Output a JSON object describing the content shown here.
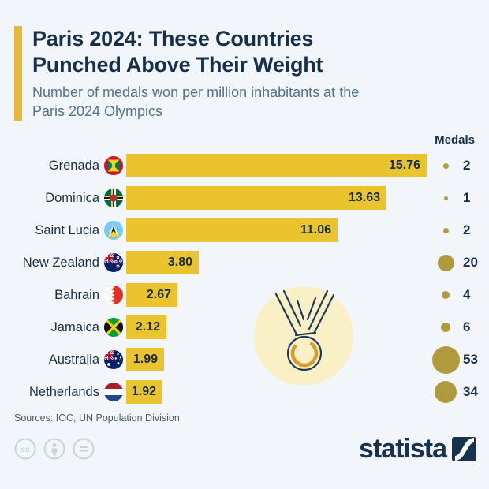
{
  "header": {
    "title_line1": "Paris 2024: These Countries",
    "title_line2": "Punched Above Their Weight",
    "subtitle_line1": "Number of medals won per million inhabitants at the",
    "subtitle_line2": "Paris 2024 Olympics"
  },
  "medals_header": "Medals",
  "rows": [
    {
      "country": "Grenada",
      "value_label": "15.76",
      "medals": "2"
    },
    {
      "country": "Dominica",
      "value_label": "13.63",
      "medals": "1"
    },
    {
      "country": "Saint Lucia",
      "value_label": "11.06",
      "medals": "2"
    },
    {
      "country": "New Zealand",
      "value_label": "3.80",
      "medals": "20"
    },
    {
      "country": "Bahrain",
      "value_label": "2.67",
      "medals": "4"
    },
    {
      "country": "Jamaica",
      "value_label": "2.12",
      "medals": "6"
    },
    {
      "country": "Australia",
      "value_label": "1.99",
      "medals": "53"
    },
    {
      "country": "Netherlands",
      "value_label": "1.92",
      "medals": "34"
    }
  ],
  "source": "Sources: IOC, UN Population Division",
  "brand": "statista",
  "icons": {
    "cc": "cc-license-icon",
    "attribution": "cc-attribution-icon",
    "no-derivatives": "cc-no-derivatives-icon",
    "flags": [
      "grenada-flag",
      "dominica-flag",
      "saint-lucia-flag",
      "new-zealand-flag",
      "bahrain-flag",
      "jamaica-flag",
      "australia-flag",
      "netherlands-flag"
    ],
    "watermark": "olympic-medal-icon"
  },
  "colors": {
    "background": "#F2F5F9",
    "navy_text": "#16304C",
    "subtitle_text": "#54718E",
    "bar_yellow": "#EAC42E",
    "accent_yellow": "#E5BA3C",
    "medal_dot_gold": "#AF9A3C",
    "watermark_bg": "#FAF0C6",
    "watermark_gold": "#D79C2E",
    "source_text": "#4E5D6A",
    "cc_gray": "#C8D2DC"
  },
  "chart_data": {
    "type": "bar",
    "orientation": "horizontal",
    "title": "Paris 2024: These Countries Punched Above Their Weight",
    "subtitle": "Number of medals won per million inhabitants at the Paris 2024 Olympics",
    "categories": [
      "Grenada",
      "Dominica",
      "Saint Lucia",
      "New Zealand",
      "Bahrain",
      "Jamaica",
      "Australia",
      "Netherlands"
    ],
    "values": [
      15.76,
      13.63,
      11.06,
      3.8,
      2.67,
      2.12,
      1.99,
      1.92
    ],
    "value_labels": [
      "15.76",
      "13.63",
      "11.06",
      "3.80",
      "2.67",
      "2.12",
      "1.99",
      "1.92"
    ],
    "medals": [
      2,
      1,
      2,
      20,
      4,
      6,
      53,
      34
    ],
    "medals_column_header": "Medals",
    "xlabel": "Medals won per million inhabitants",
    "xlim": [
      0,
      16
    ],
    "grid": false,
    "legend": false,
    "bar_color": "#EAC42E",
    "value_label_position": "inside-end",
    "medal_dot_sizing": "area proportional to medal count"
  }
}
